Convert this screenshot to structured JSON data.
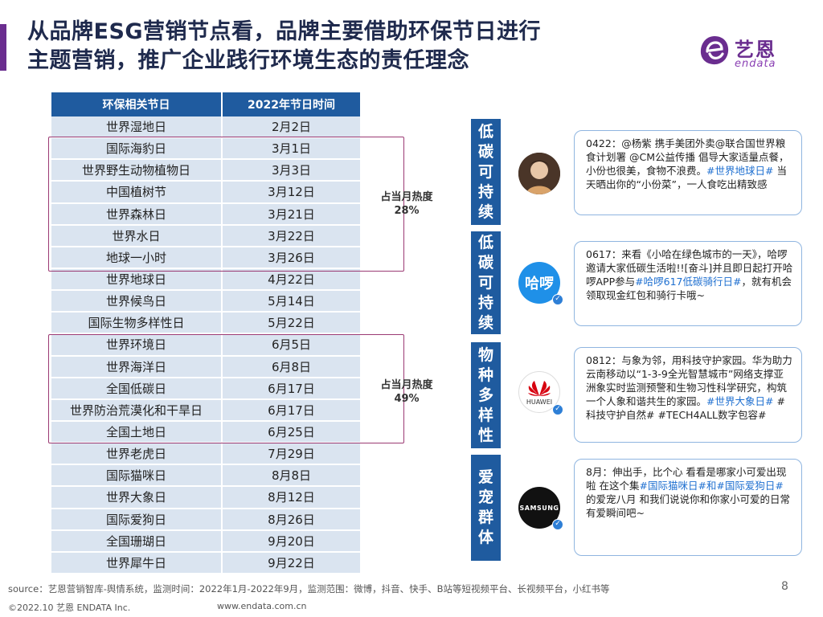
{
  "title": {
    "line1": "从品牌ESG营销节点看，品牌主要借助环保节日进行",
    "line2": "主题营销，推广企业践行环境生态的责任理念"
  },
  "logo": {
    "cn": "艺恩",
    "en": "endata",
    "color": "#6a2d8f"
  },
  "table": {
    "headers": [
      "环保相关节日",
      "2022年节日时间"
    ],
    "rows": [
      [
        "世界湿地日",
        "2月2日"
      ],
      [
        "国际海豹日",
        "3月1日"
      ],
      [
        "世界野生动物植物日",
        "3月3日"
      ],
      [
        "中国植树节",
        "3月12日"
      ],
      [
        "世界森林日",
        "3月21日"
      ],
      [
        "世界水日",
        "3月22日"
      ],
      [
        "地球一小时",
        "3月26日"
      ],
      [
        "世界地球日",
        "4月22日"
      ],
      [
        "世界候鸟日",
        "5月14日"
      ],
      [
        "国际生物多样性日",
        "5月22日"
      ],
      [
        "世界环境日",
        "6月5日"
      ],
      [
        "世界海洋日",
        "6月8日"
      ],
      [
        "全国低碳日",
        "6月17日"
      ],
      [
        "世界防治荒漠化和干旱日",
        "6月17日"
      ],
      [
        "全国土地日",
        "6月25日"
      ],
      [
        "世界老虎日",
        "7月29日"
      ],
      [
        "国际猫咪日",
        "8月8日"
      ],
      [
        "世界大象日",
        "8月12日"
      ],
      [
        "国际爱狗日",
        "8月26日"
      ],
      [
        "全国珊瑚日",
        "9月20日"
      ],
      [
        "世界犀牛日",
        "9月22日"
      ]
    ],
    "header_color": "#1f5b9f",
    "row_color": "#dae4f0"
  },
  "heat": [
    {
      "label": "占当月热度",
      "value": "28%"
    },
    {
      "label": "占当月热度",
      "value": "49%"
    }
  ],
  "posts": [
    {
      "category": [
        "低",
        "碳",
        "可",
        "持",
        "续"
      ],
      "avatar": "photo-avatar",
      "text1": "0422：@杨紫 携手美团外卖@联合国世界粮食计划署 @CM公益传播 倡导大家适量点餐，小份也很美，食物不浪费。",
      "tag": "#世界地球日#",
      "text2": " 当天晒出你的“小份菜”，一人食吃出精致感"
    },
    {
      "category": [
        "低",
        "碳",
        "可",
        "持",
        "续"
      ],
      "avatar": "哈啰",
      "text1": "0617：来看《小哈在绿色城市的一天》，哈啰邀请大家低碳生活啦!![奋斗]并且即日起打开哈啰APP参与",
      "tag": "#哈啰617低碳骑行日#",
      "text2": "，就有机会领取现金红包和骑行卡哦~"
    },
    {
      "category": [
        "物",
        "种",
        "多",
        "样",
        "性"
      ],
      "avatar": "HUAWEI",
      "text1": "0812：与象为邻，用科技守护家园。华为助力云南移动以“1-3-9全光智慧城市”网络支撑亚洲象实时监测预警和生物习性科学研究，构筑一个人象和谐共生的家园。",
      "tag": "#世界大象日#",
      "text2": " #科技守护自然# #TECH4ALL数字包容#"
    },
    {
      "category": [
        "爱",
        "宠",
        "群",
        "体"
      ],
      "avatar": "SAMSUNG",
      "text1": "8月：伸出手，比个心 看看是哪家小可爱出现啦 在这个集",
      "tag": "#国际猫咪日#和#国际爱狗日#",
      "text2": "的爱宠八月 和我们说说你和你家小可爱的日常有爱瞬间吧~"
    }
  ],
  "footer": {
    "source": "source：艺恩营销智库-舆情系统，监测时间：2022年1月-2022年9月，监测范围：微博，抖音、快手、B站等短视频平台、长视频平台，小红书等",
    "page": "8",
    "copyright": "©2022.10 艺恩 ENDATA Inc.",
    "url": "www.endata.com.cn"
  }
}
